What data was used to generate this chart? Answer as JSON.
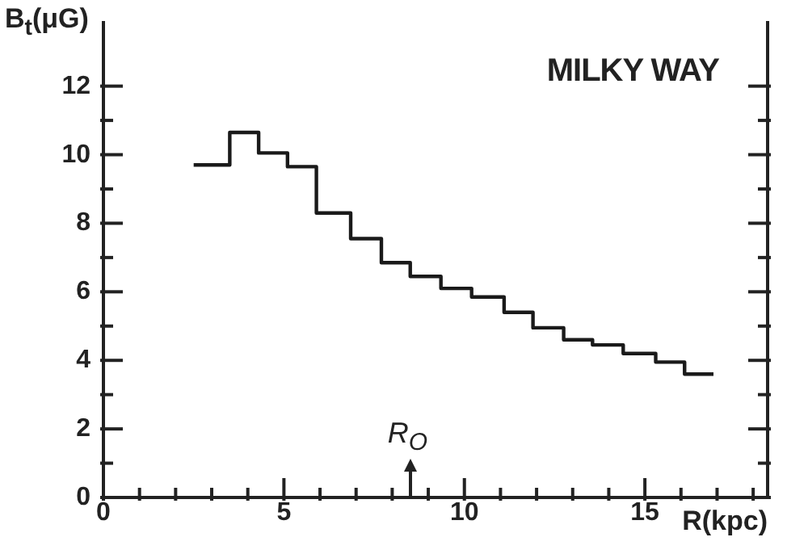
{
  "chart_data": {
    "type": "histogram",
    "title": "MILKY WAY",
    "xlabel": "R(kpc)",
    "ylabel": "B$_{t}$(μG)",
    "bins": [
      2.5,
      3.5,
      4.3,
      5.1,
      5.9,
      6.85,
      7.7,
      8.5,
      9.35,
      10.2,
      11.1,
      11.9,
      12.75,
      13.55,
      14.4,
      15.3,
      16.1,
      16.9
    ],
    "values": [
      9.7,
      10.65,
      10.05,
      9.65,
      8.3,
      7.55,
      6.85,
      6.45,
      6.1,
      5.85,
      5.4,
      4.95,
      4.6,
      4.45,
      4.2,
      3.95,
      3.6
    ],
    "color": "#1a1a1a",
    "xlim": [
      0,
      18.4
    ],
    "xticks": [
      0,
      {
        "value": 1,
        "label": null
      },
      {
        "value": 2,
        "label": null
      },
      {
        "value": 3,
        "label": null
      },
      {
        "value": 4,
        "label": null
      },
      5,
      {
        "value": 6,
        "label": null
      },
      {
        "value": 7,
        "label": null
      },
      {
        "value": 8,
        "label": null
      },
      {
        "value": 9,
        "label": null
      },
      10,
      {
        "value": 11,
        "label": null
      },
      {
        "value": 12,
        "label": null
      },
      {
        "value": 13,
        "label": null
      },
      {
        "value": 14,
        "label": null
      },
      15,
      {
        "value": 16,
        "label": null
      },
      {
        "value": 17,
        "label": null
      },
      {
        "value": 18,
        "label": null
      }
    ],
    "ylim": [
      0,
      13.9
    ],
    "yticks": [
      0,
      {
        "value": 1,
        "label": null
      },
      2,
      {
        "value": 3,
        "label": null
      },
      4,
      {
        "value": 5,
        "label": null
      },
      6,
      {
        "value": 7,
        "label": null
      },
      8,
      {
        "value": 9,
        "label": null
      },
      10,
      {
        "value": 11,
        "label": null
      },
      12
    ],
    "ref_lines": [
      {
        "axis": "x",
        "value": 8.5,
        "label": "R$_{O}$"
      }
    ],
    "marker": "none",
    "line_style": "solid"
  }
}
